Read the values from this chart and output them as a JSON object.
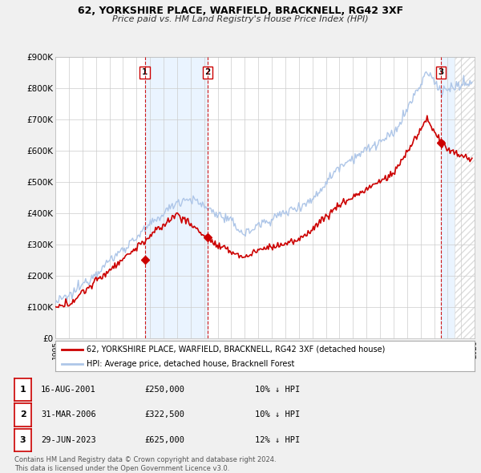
{
  "title": "62, YORKSHIRE PLACE, WARFIELD, BRACKNELL, RG42 3XF",
  "subtitle": "Price paid vs. HM Land Registry's House Price Index (HPI)",
  "background_color": "#f0f0f0",
  "plot_background": "#ffffff",
  "grid_color": "#cccccc",
  "hpi_color": "#aec6e8",
  "price_color": "#cc0000",
  "vline_color": "#cc0000",
  "shade_color": "#ddeeff",
  "hatch_color": "#dddddd",
  "ylim": [
    0,
    900000
  ],
  "yticks": [
    0,
    100000,
    200000,
    300000,
    400000,
    500000,
    600000,
    700000,
    800000,
    900000
  ],
  "ytick_labels": [
    "£0",
    "£100K",
    "£200K",
    "£300K",
    "£400K",
    "£500K",
    "£600K",
    "£700K",
    "£800K",
    "£900K"
  ],
  "xmin": 1995,
  "xmax": 2026,
  "transactions": [
    {
      "date": 2001.62,
      "price": 250000,
      "label": "1"
    },
    {
      "date": 2006.25,
      "price": 322500,
      "label": "2"
    },
    {
      "date": 2023.49,
      "price": 625000,
      "label": "3"
    }
  ],
  "transaction_table": [
    {
      "num": "1",
      "date": "16-AUG-2001",
      "price": "£250,000",
      "pct": "10%",
      "dir": "↓",
      "index": "HPI"
    },
    {
      "num": "2",
      "date": "31-MAR-2006",
      "price": "£322,500",
      "pct": "10%",
      "dir": "↓",
      "index": "HPI"
    },
    {
      "num": "3",
      "date": "29-JUN-2023",
      "price": "£625,000",
      "pct": "12%",
      "dir": "↓",
      "index": "HPI"
    }
  ],
  "footer": "Contains HM Land Registry data © Crown copyright and database right 2024.\nThis data is licensed under the Open Government Licence v3.0.",
  "legend_price": "62, YORKSHIRE PLACE, WARFIELD, BRACKNELL, RG42 3XF (detached house)",
  "legend_hpi": "HPI: Average price, detached house, Bracknell Forest"
}
